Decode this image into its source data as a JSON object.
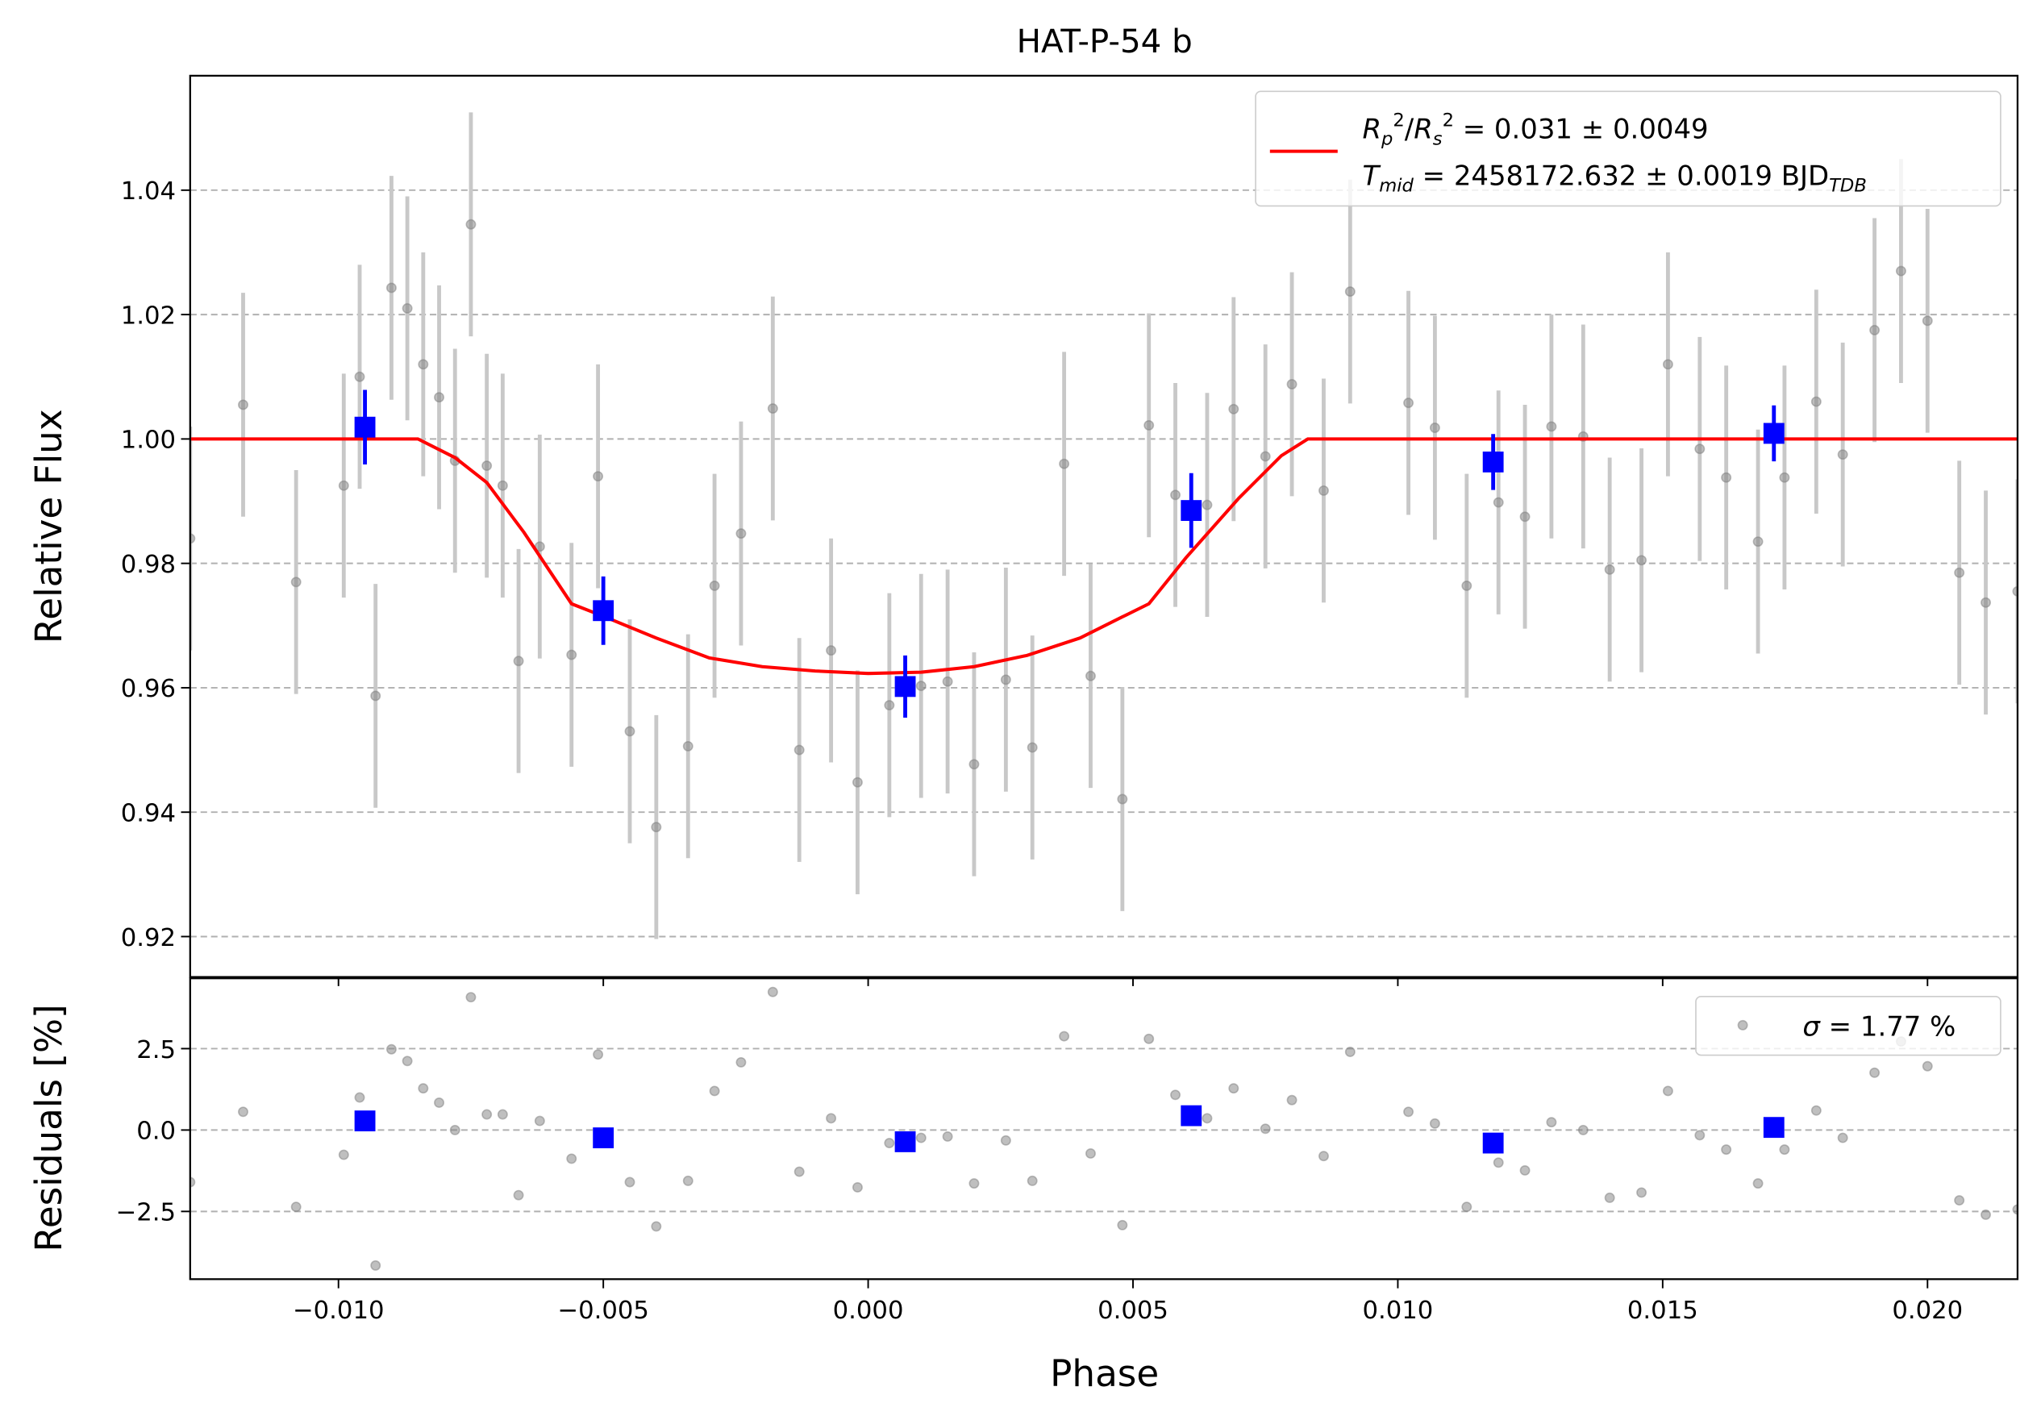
{
  "chart_data": [
    {
      "type": "scatter",
      "title": "HAT-P-54 b",
      "ylabel": "Relative Flux",
      "xlim": [
        -0.0128,
        0.0217
      ],
      "ylim": [
        0.9135,
        1.0584
      ],
      "xticks": [
        {
          "value": -0.01,
          "label": "−0.010"
        },
        {
          "value": -0.005,
          "label": "−0.005"
        },
        {
          "value": 0,
          "label": "0.000"
        },
        {
          "value": 0.005,
          "label": "0.005"
        },
        {
          "value": 0.01,
          "label": "0.010"
        },
        {
          "value": 0.015,
          "label": "0.015"
        },
        {
          "value": 0.02,
          "label": "0.020"
        }
      ],
      "xtick_labels": false,
      "yticks": [
        0.92,
        0.94,
        0.96,
        0.98,
        {
          "value": 1,
          "label": "1.00"
        },
        1.02,
        1.04
      ],
      "grid": true,
      "series": [
        {
          "type": "errorbar",
          "marker": "circle",
          "color": "#808080",
          "errcolor": "#c8c8c8",
          "yerr": 0.018,
          "x": [
            -0.0128,
            -0.0118,
            -0.0108,
            -0.0099,
            -0.0096,
            -0.0093,
            -0.009,
            -0.0087,
            -0.0084,
            -0.0081,
            -0.0078,
            -0.0075,
            -0.0072,
            -0.0069,
            -0.0066,
            -0.0062,
            -0.0056,
            -0.0051,
            -0.0045,
            -0.004,
            -0.0034,
            -0.0029,
            -0.0024,
            -0.0018,
            -0.0013,
            -0.0007,
            -0.0002,
            0.0004,
            0.001,
            0.0015,
            0.002,
            0.0026,
            0.0031,
            0.0037,
            0.0042,
            0.0048,
            0.0053,
            0.0058,
            0.0064,
            0.0069,
            0.0075,
            0.008,
            0.0086,
            0.0091,
            0.0102,
            0.0107,
            0.0113,
            0.0119,
            0.0124,
            0.0129,
            0.0135,
            0.014,
            0.0146,
            0.0151,
            0.0157,
            0.0162,
            0.0168,
            0.0173,
            0.0179,
            0.0184,
            0.019,
            0.0195,
            0.02,
            0.0206,
            0.0211,
            0.0217
          ],
          "values": [
            0.984,
            1.0055,
            0.977,
            0.9925,
            1.01,
            0.9587,
            1.0243,
            1.021,
            1.012,
            1.0067,
            0.9965,
            1.0345,
            0.9957,
            0.9925,
            0.9643,
            0.9827,
            0.9653,
            0.994,
            0.953,
            0.9376,
            0.9506,
            0.9764,
            0.9848,
            1.0049,
            0.95,
            0.966,
            0.9448,
            0.9572,
            0.9603,
            0.961,
            0.9477,
            0.9613,
            0.9504,
            0.996,
            0.9619,
            0.9421,
            1.0022,
            0.991,
            0.9894,
            1.0048,
            0.9972,
            1.0088,
            0.9917,
            1.0237,
            1.0058,
            1.0018,
            0.9764,
            0.9898,
            0.9875,
            1.002,
            1.0004,
            0.979,
            0.9805,
            1.012,
            0.9984,
            0.9938,
            0.9835,
            0.9938,
            1.006,
            0.9975,
            1.0175,
            1.027,
            1.019,
            0.9785,
            0.9737,
            0.9755
          ]
        },
        {
          "type": "line",
          "color": "#ff0000",
          "name": [
            "R",
            "p",
            "2",
            "/",
            "R",
            "s",
            "2",
            " = 0.031 ± 0.0049",
            "T",
            "mid",
            " = 2458172.632 ± 0.0019 BJD",
            "TDB"
          ],
          "x": [
            -0.0128,
            -0.0085,
            -0.0078,
            -0.0072,
            -0.0065,
            -0.0056,
            -0.005,
            -0.004,
            -0.003,
            -0.002,
            -0.001,
            0,
            0.001,
            0.002,
            0.003,
            0.004,
            0.0048,
            0.0053,
            0.006,
            0.007,
            0.0078,
            0.0083,
            0.0217
          ],
          "values": [
            1,
            1,
            0.997,
            0.993,
            0.985,
            0.9735,
            0.9715,
            0.968,
            0.9648,
            0.9634,
            0.9627,
            0.9623,
            0.9625,
            0.9634,
            0.9652,
            0.968,
            0.9714,
            0.9735,
            0.9809,
            0.9905,
            0.9973,
            1,
            1
          ]
        },
        {
          "type": "errorbar",
          "marker": "square",
          "color": "#0000ff",
          "errcolor": "#0000ff",
          "x": [
            -0.0095,
            -0.005,
            0.0007,
            0.0061,
            0.0118,
            0.0171
          ],
          "values": [
            1.0019,
            0.9724,
            0.9602,
            0.9885,
            0.9963,
            1.0009
          ],
          "yerr": [
            0.006,
            0.0055,
            0.005,
            0.006,
            0.0045,
            0.0045
          ]
        }
      ]
    },
    {
      "type": "scatter",
      "xlabel": "Phase",
      "ylabel": "Residuals [%]",
      "xlim": [
        -0.0128,
        0.0217
      ],
      "ylim": [
        -4.58,
        4.66
      ],
      "xticks": [
        {
          "value": -0.01,
          "label": "−0.010"
        },
        {
          "value": -0.005,
          "label": "−0.005"
        },
        {
          "value": 0,
          "label": "0.000"
        },
        {
          "value": 0.005,
          "label": "0.005"
        },
        {
          "value": 0.01,
          "label": "0.010"
        },
        {
          "value": 0.015,
          "label": "0.015"
        },
        {
          "value": 0.02,
          "label": "0.020"
        }
      ],
      "xtick_labels": true,
      "yticks": [
        {
          "value": -2.5,
          "label": "−2.5"
        },
        {
          "value": 0,
          "label": "0.0"
        },
        2.5
      ],
      "grid": true,
      "series": [
        {
          "type": "errorbar",
          "marker": "circle",
          "color": "#808080",
          "name": [
            "σ",
            " = 1.77 %"
          ],
          "x": [
            -0.0128,
            -0.0118,
            -0.0108,
            -0.0099,
            -0.0096,
            -0.0093,
            -0.009,
            -0.0087,
            -0.0084,
            -0.0081,
            -0.0078,
            -0.0075,
            -0.0072,
            -0.0069,
            -0.0066,
            -0.0062,
            -0.0056,
            -0.0051,
            -0.0045,
            -0.004,
            -0.0034,
            -0.0029,
            -0.0024,
            -0.0018,
            -0.0013,
            -0.0007,
            -0.0002,
            0.0004,
            0.001,
            0.0015,
            0.002,
            0.0026,
            0.0031,
            0.0037,
            0.0042,
            0.0048,
            0.0053,
            0.0058,
            0.0064,
            0.0069,
            0.0075,
            0.008,
            0.0086,
            0.0091,
            0.0102,
            0.0107,
            0.0113,
            0.0119,
            0.0124,
            0.0129,
            0.0135,
            0.014,
            0.0146,
            0.0151,
            0.0157,
            0.0162,
            0.0168,
            0.0173,
            0.0179,
            0.0184,
            0.019,
            0.0195,
            0.02,
            0.0206,
            0.0211,
            0.0217
          ],
          "values": [
            -1.6,
            0.56,
            -2.36,
            -0.76,
            1.0,
            -4.16,
            2.48,
            2.12,
            1.28,
            0.84,
            0,
            4.08,
            0.48,
            0.48,
            -2.0,
            0.28,
            -0.88,
            2.32,
            -1.6,
            -2.96,
            -1.56,
            1.2,
            2.08,
            4.24,
            -1.28,
            0.36,
            -1.76,
            -0.4,
            -0.24,
            -0.2,
            -1.64,
            -0.32,
            -1.56,
            2.88,
            -0.72,
            -2.92,
            2.8,
            1.08,
            0.36,
            1.28,
            0.04,
            0.92,
            -0.8,
            2.4,
            0.56,
            0.2,
            -2.36,
            -1.0,
            -1.24,
            0.24,
            0,
            -2.08,
            -1.92,
            1.2,
            -0.16,
            -0.6,
            -1.64,
            -0.6,
            0.6,
            -0.24,
            1.76,
            2.72,
            1.96,
            -2.16,
            -2.6,
            -2.44
          ]
        },
        {
          "type": "errorbar",
          "marker": "square",
          "color": "#0000ff",
          "x": [
            -0.0095,
            -0.005,
            0.0007,
            0.0061,
            0.0118,
            0.0171
          ],
          "values": [
            0.28,
            -0.24,
            -0.36,
            0.44,
            -0.4,
            0.08
          ]
        }
      ]
    }
  ]
}
